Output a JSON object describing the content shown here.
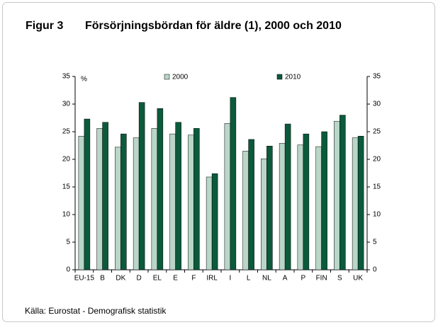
{
  "chart_data": {
    "type": "bar",
    "figure_label": "Figur 3",
    "title": "Försörjningsbördan för äldre (1), 2000 och 2010",
    "y_unit": "%",
    "source": "Källa: Eurostat -  Demografisk statistik",
    "categories": [
      "EU-15",
      "B",
      "DK",
      "D",
      "EL",
      "E",
      "F",
      "IRL",
      "I",
      "L",
      "NL",
      "A",
      "P",
      "FIN",
      "S",
      "UK"
    ],
    "series": [
      {
        "name": "2000",
        "color": "#b9d6c8",
        "values": [
          24.2,
          25.6,
          22.2,
          23.9,
          25.6,
          24.6,
          24.4,
          16.8,
          26.5,
          21.5,
          20.1,
          22.9,
          22.6,
          22.3,
          26.9,
          23.9
        ]
      },
      {
        "name": "2010",
        "color": "#0b5a3c",
        "values": [
          27.3,
          26.7,
          24.6,
          30.3,
          29.2,
          26.7,
          25.6,
          17.4,
          31.2,
          23.6,
          22.4,
          26.4,
          24.6,
          25.0,
          28.0,
          24.2
        ]
      }
    ],
    "ylim": [
      0,
      35
    ],
    "yticks": [
      0,
      5,
      10,
      15,
      20,
      25,
      30,
      35
    ],
    "y2lim": [
      0,
      35
    ],
    "y2ticks": [
      0,
      5,
      10,
      15,
      20,
      25,
      30,
      35
    ],
    "grid": false,
    "legend": "top"
  }
}
